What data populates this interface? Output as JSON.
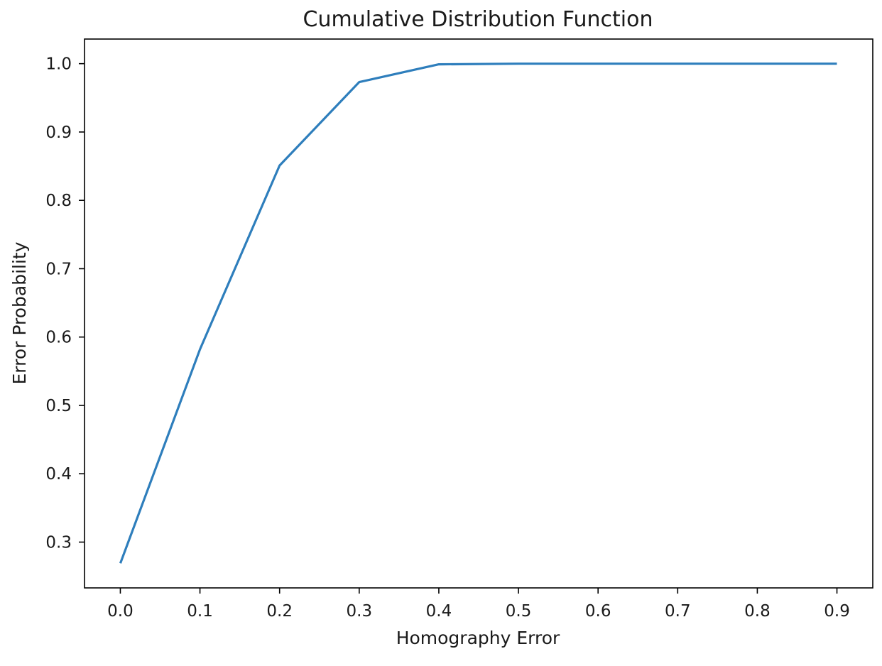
{
  "chart_data": {
    "type": "line",
    "title": "Cumulative Distribution Function",
    "xlabel": "Homography Error",
    "ylabel": "Error Probability",
    "xlim": [
      -0.045,
      0.945
    ],
    "ylim": [
      0.233,
      1.036
    ],
    "xticks": [
      0.0,
      0.1,
      0.2,
      0.3,
      0.4,
      0.5,
      0.6,
      0.7,
      0.8,
      0.9
    ],
    "xtick_labels": [
      "0.0",
      "0.1",
      "0.2",
      "0.3",
      "0.4",
      "0.5",
      "0.6",
      "0.7",
      "0.8",
      "0.9"
    ],
    "yticks": [
      0.3,
      0.4,
      0.5,
      0.6,
      0.7,
      0.8,
      0.9,
      1.0
    ],
    "ytick_labels": [
      "0.3",
      "0.4",
      "0.5",
      "0.6",
      "0.7",
      "0.8",
      "0.9",
      "1.0"
    ],
    "grid": false,
    "series": [
      {
        "color": "#2e7ebc",
        "x": [
          0.0,
          0.1,
          0.2,
          0.3,
          0.4,
          0.5,
          0.6,
          0.7,
          0.8,
          0.9
        ],
        "y": [
          0.269,
          0.582,
          0.851,
          0.973,
          0.999,
          1.0,
          1.0,
          1.0,
          1.0,
          1.0
        ]
      }
    ]
  }
}
